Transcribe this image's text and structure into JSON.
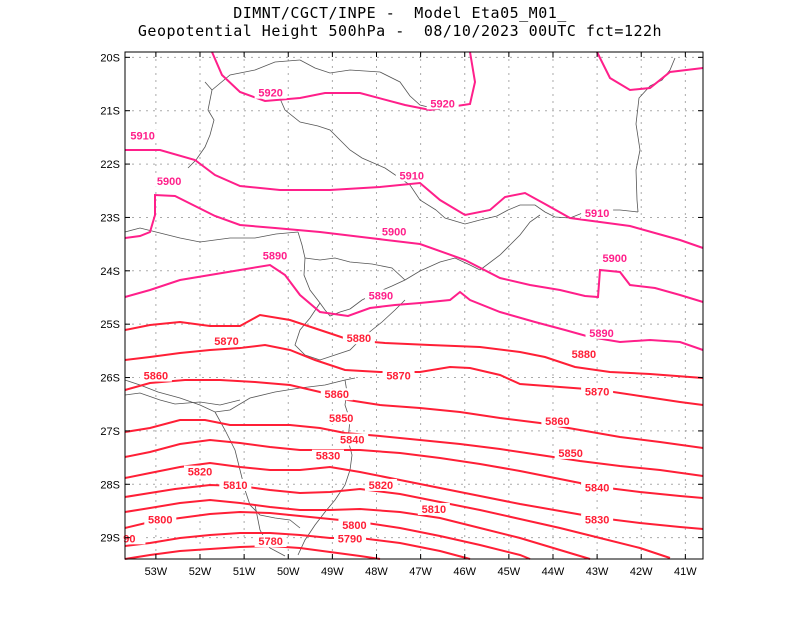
{
  "title": {
    "line1": "DIMNT/CGCT/INPE -  Model Eta05_M01_",
    "line2": "Geopotential Height 500hPa -  08/10/2023 00UTC fct=122h"
  },
  "chart_data": {
    "type": "contour",
    "title": "Geopotential Height 500hPa",
    "source": "DIMNT/CGCT/INPE",
    "model": "Eta05_M01_",
    "init_time": "08/10/2023 00UTC",
    "forecast": "fct=122h",
    "lon_range": [
      -53.7,
      -40.6
    ],
    "lat_range": [
      -29.4,
      -19.9
    ],
    "x_ticks": [
      "53W",
      "52W",
      "51W",
      "50W",
      "49W",
      "48W",
      "47W",
      "46W",
      "45W",
      "44W",
      "43W",
      "42W",
      "41W"
    ],
    "x_tick_values": [
      -53,
      -52,
      -51,
      -50,
      -49,
      -48,
      -47,
      -46,
      -45,
      -44,
      -43,
      -42,
      -41
    ],
    "y_ticks": [
      "20S",
      "21S",
      "22S",
      "23S",
      "24S",
      "25S",
      "26S",
      "27S",
      "28S",
      "29S"
    ],
    "y_tick_values": [
      -20,
      -21,
      -22,
      -23,
      -24,
      -25,
      -26,
      -27,
      -28,
      -29
    ],
    "grid": true,
    "levels": [
      {
        "level": 5920,
        "color": "#ff1f8a",
        "labels": [
          {
            "text": "5920",
            "lon": -50.4,
            "lat": -20.7
          },
          {
            "text": "5920",
            "lon": -46.5,
            "lat": -20.9
          }
        ]
      },
      {
        "level": 5910,
        "color": "#ff1f8a",
        "labels": [
          {
            "text": "5910",
            "lon": -53.3,
            "lat": -21.5
          },
          {
            "text": "5910",
            "lon": -47.2,
            "lat": -22.25
          },
          {
            "text": "5910",
            "lon": -43.0,
            "lat": -22.95
          }
        ]
      },
      {
        "level": 5900,
        "color": "#ff1f8a",
        "labels": [
          {
            "text": "5900",
            "lon": -52.7,
            "lat": -22.35
          },
          {
            "text": "5900",
            "lon": -47.6,
            "lat": -23.3
          },
          {
            "text": "5900",
            "lon": -42.6,
            "lat": -23.8
          }
        ]
      },
      {
        "level": 5890,
        "color": "#ff1f8a",
        "labels": [
          {
            "text": "5890",
            "lon": -50.3,
            "lat": -23.75
          },
          {
            "text": "5890",
            "lon": -47.9,
            "lat": -24.5
          },
          {
            "text": "5890",
            "lon": -42.9,
            "lat": -25.2
          }
        ]
      },
      {
        "level": 5880,
        "color": "#ff1f36",
        "labels": [
          {
            "text": "5880",
            "lon": -48.4,
            "lat": -25.3
          },
          {
            "text": "5880",
            "lon": -43.3,
            "lat": -25.6
          }
        ]
      },
      {
        "level": 5870,
        "color": "#ff1f36",
        "labels": [
          {
            "text": "5870",
            "lon": -51.4,
            "lat": -25.35
          },
          {
            "text": "5870",
            "lon": -47.5,
            "lat": -26.0
          },
          {
            "text": "5870",
            "lon": -43.0,
            "lat": -26.3
          }
        ]
      },
      {
        "level": 5860,
        "color": "#ff1f36",
        "labels": [
          {
            "text": "5860",
            "lon": -53.0,
            "lat": -26.0
          },
          {
            "text": "5860",
            "lon": -48.9,
            "lat": -26.35
          },
          {
            "text": "5860",
            "lon": -43.9,
            "lat": -26.85
          }
        ]
      },
      {
        "level": 5850,
        "color": "#ff1f36",
        "labels": [
          {
            "text": "5850",
            "lon": -48.8,
            "lat": -26.8
          },
          {
            "text": "5850",
            "lon": -43.6,
            "lat": -27.45
          }
        ]
      },
      {
        "level": 5840,
        "color": "#ff1f36",
        "labels": [
          {
            "text": "5840",
            "lon": -48.55,
            "lat": -27.2
          },
          {
            "text": "5840",
            "lon": -43.0,
            "lat": -28.1
          }
        ]
      },
      {
        "level": 5830,
        "color": "#ff1f36",
        "labels": [
          {
            "text": "5830",
            "lon": -49.1,
            "lat": -27.5
          },
          {
            "text": "5830",
            "lon": -43.0,
            "lat": -28.7
          }
        ]
      },
      {
        "level": 5820,
        "color": "#ff1f36",
        "labels": [
          {
            "text": "5820",
            "lon": -52.0,
            "lat": -27.8
          },
          {
            "text": "5820",
            "lon": -47.9,
            "lat": -28.05
          }
        ]
      },
      {
        "level": 5810,
        "color": "#ff1f36",
        "labels": [
          {
            "text": "5810",
            "lon": -51.2,
            "lat": -28.05
          },
          {
            "text": "5810",
            "lon": -46.7,
            "lat": -28.5
          }
        ]
      },
      {
        "level": 5800,
        "color": "#ff1f36",
        "labels": [
          {
            "text": "5800",
            "lon": -52.9,
            "lat": -28.7
          },
          {
            "text": "5800",
            "lon": -48.5,
            "lat": -28.8
          }
        ]
      },
      {
        "level": 5790,
        "color": "#ff1f36",
        "labels": [
          {
            "text": "90",
            "lon": -53.6,
            "lat": -29.05
          },
          {
            "text": "5790",
            "lon": -48.6,
            "lat": -29.05
          }
        ]
      },
      {
        "level": 5780,
        "color": "#ff1f36",
        "labels": [
          {
            "text": "5780",
            "lon": -50.4,
            "lat": -29.1
          }
        ]
      }
    ]
  }
}
